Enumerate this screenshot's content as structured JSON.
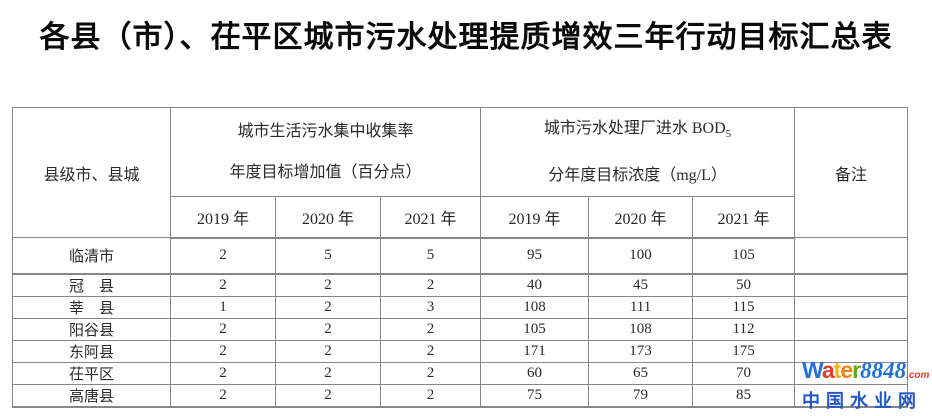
{
  "title": "各县（市）、茌平区城市污水处理提质增效三年行动目标汇总表",
  "table": {
    "col1_header": "县级市、县城",
    "group1": {
      "line1": "城市生活污水集中收集率",
      "line2": "年度目标增加值（百分点）"
    },
    "group2": {
      "line1": "城市污水处理厂进水 BOD",
      "line1_sub": "5",
      "line2": "分年度目标浓度（mg/L）"
    },
    "remark_header": "备注",
    "years": [
      "2019 年",
      "2020 年",
      "2021 年"
    ],
    "rows": [
      {
        "name": "临清市",
        "collection": [
          "2",
          "5",
          "5"
        ],
        "bod": [
          "95",
          "100",
          "105"
        ],
        "remark": ""
      },
      {
        "name": "冠　县",
        "collection": [
          "2",
          "2",
          "2"
        ],
        "bod": [
          "40",
          "45",
          "50"
        ],
        "remark": ""
      },
      {
        "name": "莘　县",
        "collection": [
          "1",
          "2",
          "3"
        ],
        "bod": [
          "108",
          "111",
          "115"
        ],
        "remark": ""
      },
      {
        "name": "阳谷县",
        "collection": [
          "2",
          "2",
          "2"
        ],
        "bod": [
          "105",
          "108",
          "112"
        ],
        "remark": ""
      },
      {
        "name": "东阿县",
        "collection": [
          "2",
          "2",
          "2"
        ],
        "bod": [
          "171",
          "173",
          "175"
        ],
        "remark": ""
      },
      {
        "name": "茌平区",
        "collection": [
          "2",
          "2",
          "2"
        ],
        "bod": [
          "60",
          "65",
          "70"
        ],
        "remark": ""
      },
      {
        "name": "高唐县",
        "collection": [
          "2",
          "2",
          "2"
        ],
        "bod": [
          "75",
          "79",
          "85"
        ],
        "remark": ""
      }
    ]
  },
  "watermark": {
    "brand_letters": [
      {
        "ch": "W",
        "color": "#2472d8"
      },
      {
        "ch": "a",
        "color": "#e23d2a"
      },
      {
        "ch": "t",
        "color": "#f5b318"
      },
      {
        "ch": "e",
        "color": "#f08219"
      },
      {
        "ch": "r",
        "color": "#63a90f"
      }
    ],
    "brand_number": "8848",
    "brand_number_color": "#2472d8",
    "domain_suffix": ".com",
    "domain_suffix_color": "#e23d2a",
    "tagline": "中国水业网",
    "tagline_color": "#2058c8"
  }
}
